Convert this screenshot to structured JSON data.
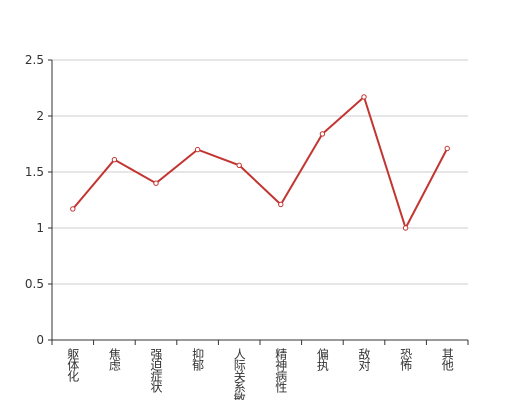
{
  "chart_data": {
    "type": "line",
    "categories": [
      "躯体化",
      "焦虑",
      "强迫症状",
      "抑郁",
      "人际关系敏感",
      "精神病性",
      "偏执",
      "敌对",
      "恐怖",
      "其他"
    ],
    "series": [
      {
        "color": "#c23531",
        "values": [
          1.17,
          1.61,
          1.4,
          1.7,
          1.56,
          1.21,
          1.84,
          2.17,
          1.0,
          1.71
        ]
      }
    ],
    "ylim": [
      0,
      2.5
    ],
    "yticks": [
      0,
      0.5,
      1,
      1.5,
      2,
      2.5
    ],
    "grid": true
  }
}
